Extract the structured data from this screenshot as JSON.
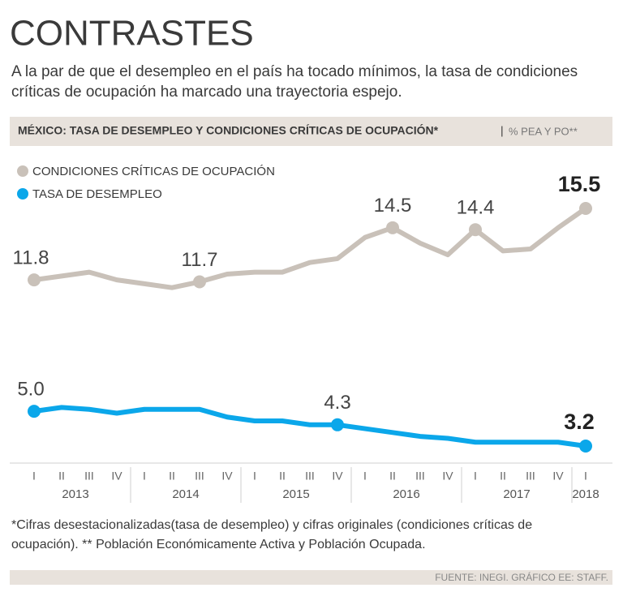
{
  "chart_data": {
    "type": "line",
    "title": "CONTRASTES",
    "subtitle": [
      "A la par de que el desempleo en el país ha tocado mínimos, la tasa de condiciones",
      "críticas de ocupación ha marcado una trayectoria espejo."
    ],
    "header": "MÉXICO: TASA DE DESEMPLEO Y CONDICIONES CRÍTICAS DE OCUPACIÓN*",
    "unit": "% PEA Y PO**",
    "categories": [
      "I",
      "II",
      "III",
      "IV",
      "I",
      "II",
      "III",
      "IV",
      "I",
      "II",
      "III",
      "IV",
      "I",
      "II",
      "III",
      "IV",
      "I",
      "II",
      "III",
      "IV",
      "I"
    ],
    "years": [
      "2013",
      "2014",
      "2015",
      "2016",
      "2017",
      "2018"
    ],
    "series": [
      {
        "name": "CONDICIONES CRÍTICAS DE OCUPACIÓN",
        "color": "#c9c1b9",
        "values": [
          11.8,
          12.0,
          12.2,
          11.8,
          11.6,
          11.4,
          11.7,
          12.1,
          12.2,
          12.2,
          12.7,
          12.9,
          14.0,
          14.5,
          13.7,
          13.1,
          14.4,
          13.3,
          13.4,
          14.5,
          15.5
        ],
        "value_labels": [
          "11.8",
          null,
          null,
          null,
          null,
          null,
          "11.7",
          null,
          null,
          null,
          null,
          null,
          null,
          "14.5",
          null,
          null,
          "14.4",
          null,
          null,
          null,
          "15.5"
        ]
      },
      {
        "name": "TASA DE DESEMPLEO",
        "color": "#0ba7ea",
        "values": [
          5.0,
          5.2,
          5.1,
          4.9,
          5.1,
          5.1,
          5.1,
          4.7,
          4.5,
          4.5,
          4.3,
          4.3,
          4.1,
          3.9,
          3.7,
          3.6,
          3.4,
          3.4,
          3.4,
          3.4,
          3.2
        ],
        "value_labels": [
          "5.0",
          null,
          null,
          null,
          null,
          null,
          null,
          null,
          null,
          null,
          null,
          "4.3",
          null,
          null,
          null,
          null,
          null,
          null,
          null,
          null,
          "3.2"
        ]
      }
    ],
    "footnote": [
      "*Cifras desestacionalizadas(tasa de desempleo) y cifras originales (condiciones críticas de",
      "ocupación).  ** Población Económicamente Activa y Población Ocupada."
    ],
    "source": "FUENTE: INEGI. GRÁFICO EE: STAFF."
  }
}
